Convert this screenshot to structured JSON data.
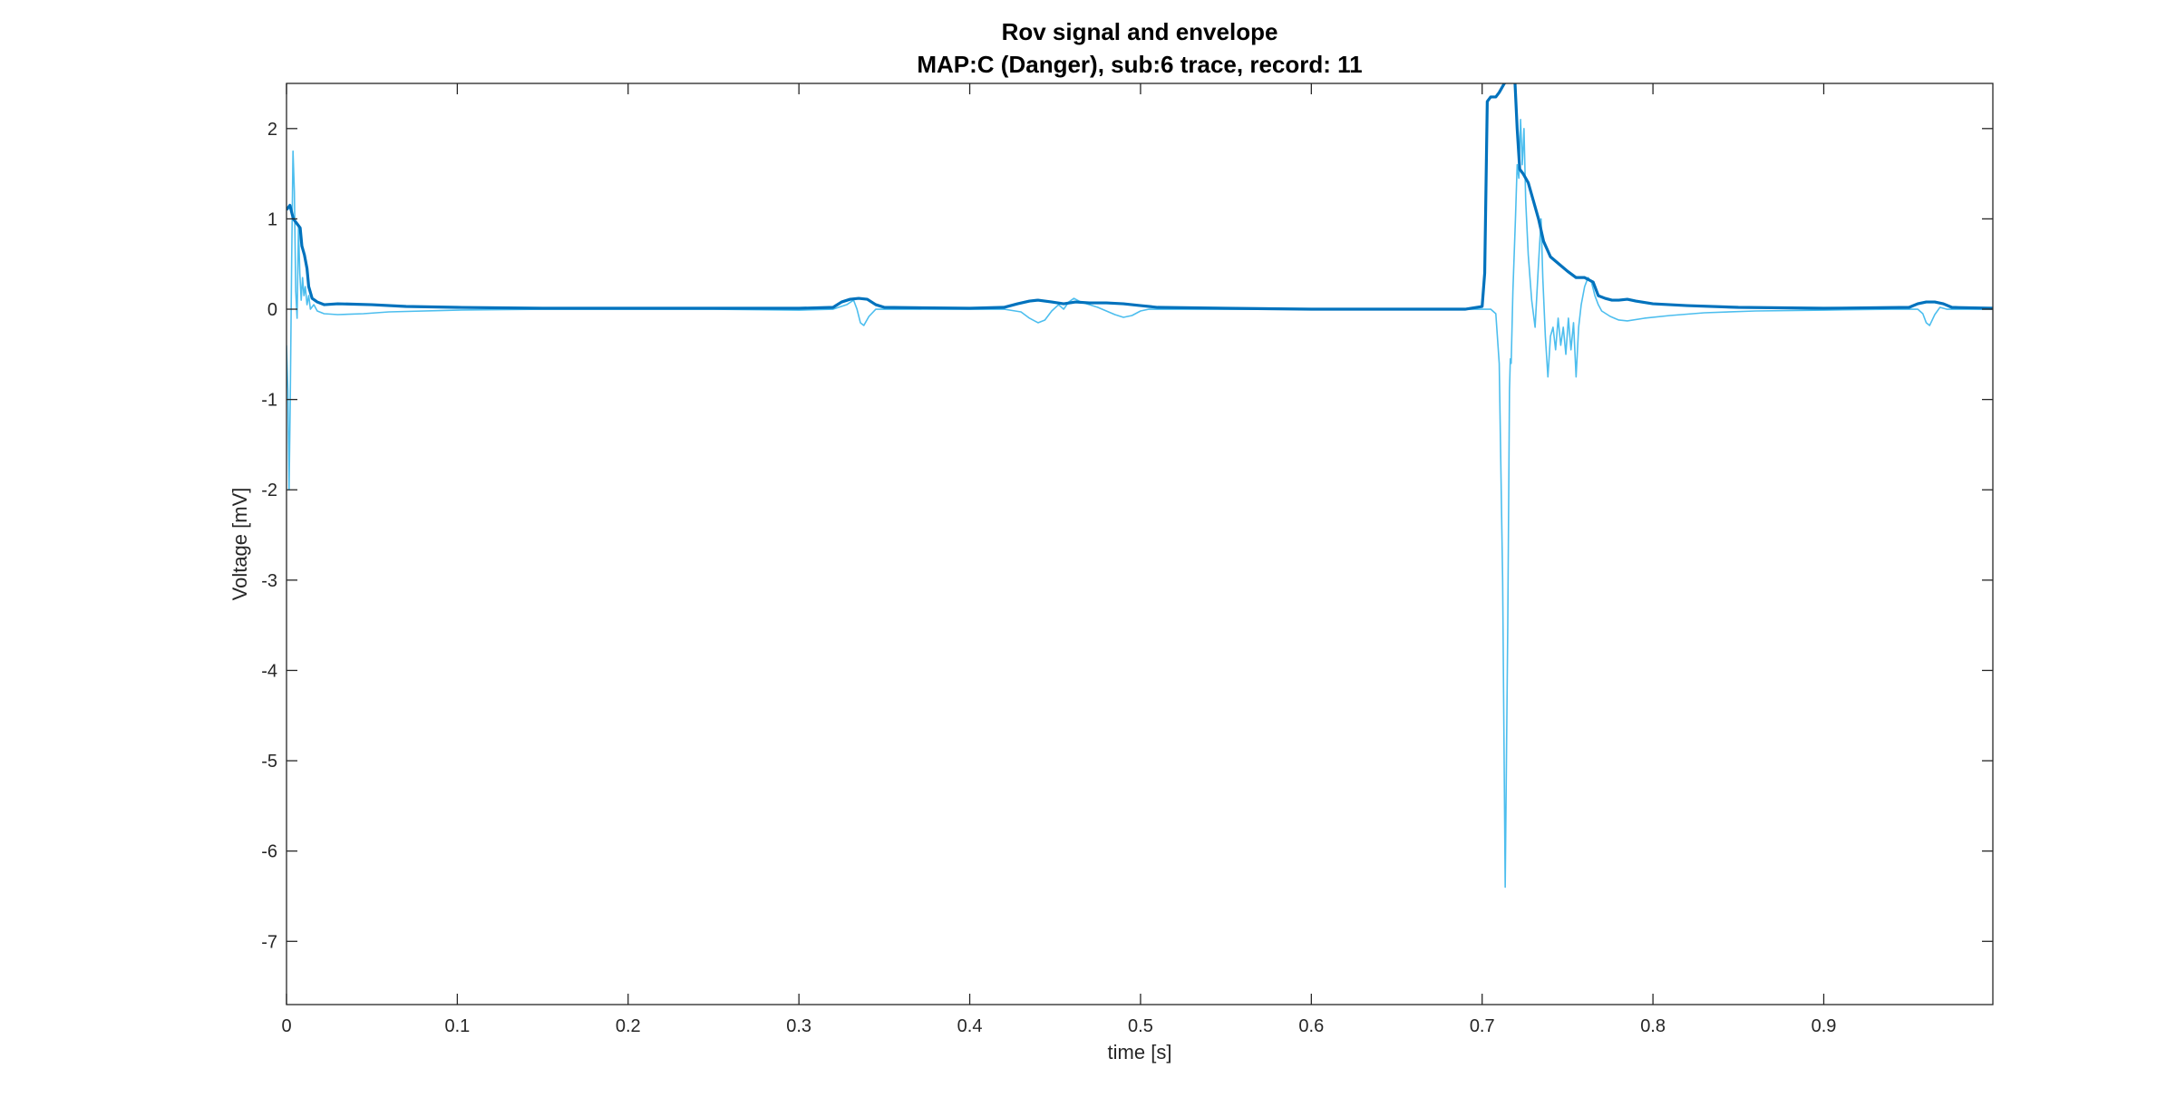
{
  "chart_data": {
    "type": "line",
    "title": "Rov signal and envelope",
    "subtitle": "MAP:C (Danger), sub:6 trace, record: 11",
    "xlabel": "time [s]",
    "ylabel": "Voltage [mV]",
    "xlim": [
      0,
      0.999
    ],
    "ylim": [
      -7.7,
      2.5
    ],
    "xticks": [
      0,
      0.1,
      0.2,
      0.3,
      0.4,
      0.5,
      0.6,
      0.7,
      0.8,
      0.9
    ],
    "xtick_labels": [
      "0",
      "0.1",
      "0.2",
      "0.3",
      "0.4",
      "0.5",
      "0.6",
      "0.7",
      "0.8",
      "0.9"
    ],
    "yticks": [
      2,
      1,
      0,
      -1,
      -2,
      -3,
      -4,
      -5,
      -6,
      -7
    ],
    "ytick_labels": [
      "2",
      "1",
      "0",
      "-1",
      "-2",
      "-3",
      "-4",
      "-5",
      "-6",
      "-7"
    ],
    "grid": false,
    "colors": {
      "signal": "#4DBEEE",
      "envelope": "#0072BD",
      "axes": "#262626"
    },
    "series": [
      {
        "key": "signal",
        "points": [
          [
            0,
            -0.4
          ],
          [
            0.0008,
            -0.9
          ],
          [
            0.0015,
            -2.0
          ],
          [
            0.0022,
            -1.0
          ],
          [
            0.003,
            0.5
          ],
          [
            0.0038,
            1.75
          ],
          [
            0.0046,
            1.3
          ],
          [
            0.0054,
            0.2
          ],
          [
            0.0062,
            -0.1
          ],
          [
            0.007,
            0.9
          ],
          [
            0.0078,
            0.4
          ],
          [
            0.0086,
            0.1
          ],
          [
            0.0094,
            0.35
          ],
          [
            0.0102,
            0.15
          ],
          [
            0.011,
            0.25
          ],
          [
            0.012,
            0.05
          ],
          [
            0.013,
            0.15
          ],
          [
            0.014,
            0.0
          ],
          [
            0.016,
            0.05
          ],
          [
            0.018,
            -0.02
          ],
          [
            0.022,
            -0.05
          ],
          [
            0.03,
            -0.06
          ],
          [
            0.045,
            -0.05
          ],
          [
            0.06,
            -0.03
          ],
          [
            0.1,
            -0.01
          ],
          [
            0.15,
            0.0
          ],
          [
            0.2,
            0.0
          ],
          [
            0.25,
            0.0
          ],
          [
            0.3,
            -0.01
          ],
          [
            0.32,
            0.0
          ],
          [
            0.328,
            0.05
          ],
          [
            0.332,
            0.1
          ],
          [
            0.334,
            0.0
          ],
          [
            0.336,
            -0.15
          ],
          [
            0.338,
            -0.18
          ],
          [
            0.341,
            -0.08
          ],
          [
            0.345,
            0.0
          ],
          [
            0.36,
            0.0
          ],
          [
            0.4,
            0.0
          ],
          [
            0.42,
            0.0
          ],
          [
            0.43,
            -0.03
          ],
          [
            0.435,
            -0.1
          ],
          [
            0.44,
            -0.15
          ],
          [
            0.444,
            -0.12
          ],
          [
            0.448,
            -0.02
          ],
          [
            0.452,
            0.05
          ],
          [
            0.455,
            0.0
          ],
          [
            0.458,
            0.08
          ],
          [
            0.461,
            0.12
          ],
          [
            0.465,
            0.08
          ],
          [
            0.47,
            0.05
          ],
          [
            0.475,
            0.02
          ],
          [
            0.48,
            -0.02
          ],
          [
            0.485,
            -0.06
          ],
          [
            0.49,
            -0.09
          ],
          [
            0.495,
            -0.07
          ],
          [
            0.5,
            -0.02
          ],
          [
            0.505,
            0.0
          ],
          [
            0.55,
            0.0
          ],
          [
            0.6,
            0.0
          ],
          [
            0.65,
            0.0
          ],
          [
            0.69,
            0.0
          ],
          [
            0.705,
            0.0
          ],
          [
            0.708,
            -0.05
          ],
          [
            0.71,
            -0.6
          ],
          [
            0.712,
            -3.0
          ],
          [
            0.7135,
            -6.4
          ],
          [
            0.715,
            -3.5
          ],
          [
            0.716,
            -0.9
          ],
          [
            0.7165,
            -0.55
          ],
          [
            0.717,
            -0.6
          ],
          [
            0.718,
            0.2
          ],
          [
            0.7195,
            1.0
          ],
          [
            0.7205,
            1.6
          ],
          [
            0.7215,
            1.45
          ],
          [
            0.7225,
            2.1
          ],
          [
            0.7235,
            1.6
          ],
          [
            0.7245,
            2.0
          ],
          [
            0.7255,
            1.2
          ],
          [
            0.727,
            0.6
          ],
          [
            0.729,
            0.1
          ],
          [
            0.731,
            -0.2
          ],
          [
            0.733,
            0.5
          ],
          [
            0.7345,
            1.0
          ],
          [
            0.7355,
            0.35
          ],
          [
            0.737,
            -0.3
          ],
          [
            0.7385,
            -0.75
          ],
          [
            0.74,
            -0.3
          ],
          [
            0.7415,
            -0.2
          ],
          [
            0.743,
            -0.45
          ],
          [
            0.7445,
            -0.1
          ],
          [
            0.746,
            -0.4
          ],
          [
            0.7475,
            -0.2
          ],
          [
            0.749,
            -0.5
          ],
          [
            0.7505,
            -0.1
          ],
          [
            0.752,
            -0.45
          ],
          [
            0.7535,
            -0.15
          ],
          [
            0.755,
            -0.75
          ],
          [
            0.7565,
            -0.2
          ],
          [
            0.758,
            0.05
          ],
          [
            0.76,
            0.25
          ],
          [
            0.762,
            0.35
          ],
          [
            0.764,
            0.3
          ],
          [
            0.766,
            0.15
          ],
          [
            0.768,
            0.05
          ],
          [
            0.77,
            -0.02
          ],
          [
            0.775,
            -0.08
          ],
          [
            0.78,
            -0.12
          ],
          [
            0.785,
            -0.13
          ],
          [
            0.795,
            -0.1
          ],
          [
            0.81,
            -0.07
          ],
          [
            0.83,
            -0.04
          ],
          [
            0.86,
            -0.02
          ],
          [
            0.9,
            -0.01
          ],
          [
            0.94,
            0.0
          ],
          [
            0.955,
            0.0
          ],
          [
            0.958,
            -0.05
          ],
          [
            0.96,
            -0.15
          ],
          [
            0.962,
            -0.18
          ],
          [
            0.965,
            -0.06
          ],
          [
            0.968,
            0.02
          ],
          [
            0.972,
            0.0
          ],
          [
            0.999,
            0.0
          ]
        ]
      },
      {
        "key": "envelope",
        "points": [
          [
            0,
            1.1
          ],
          [
            0.002,
            1.15
          ],
          [
            0.004,
            1.0
          ],
          [
            0.006,
            0.95
          ],
          [
            0.008,
            0.9
          ],
          [
            0.009,
            0.7
          ],
          [
            0.0105,
            0.6
          ],
          [
            0.012,
            0.45
          ],
          [
            0.013,
            0.25
          ],
          [
            0.015,
            0.12
          ],
          [
            0.018,
            0.08
          ],
          [
            0.022,
            0.05
          ],
          [
            0.03,
            0.06
          ],
          [
            0.05,
            0.05
          ],
          [
            0.07,
            0.03
          ],
          [
            0.1,
            0.02
          ],
          [
            0.15,
            0.01
          ],
          [
            0.2,
            0.01
          ],
          [
            0.25,
            0.01
          ],
          [
            0.3,
            0.01
          ],
          [
            0.32,
            0.02
          ],
          [
            0.325,
            0.08
          ],
          [
            0.33,
            0.11
          ],
          [
            0.335,
            0.12
          ],
          [
            0.34,
            0.11
          ],
          [
            0.345,
            0.05
          ],
          [
            0.35,
            0.02
          ],
          [
            0.4,
            0.01
          ],
          [
            0.42,
            0.02
          ],
          [
            0.428,
            0.06
          ],
          [
            0.435,
            0.09
          ],
          [
            0.44,
            0.1
          ],
          [
            0.448,
            0.08
          ],
          [
            0.455,
            0.06
          ],
          [
            0.462,
            0.08
          ],
          [
            0.47,
            0.07
          ],
          [
            0.48,
            0.07
          ],
          [
            0.49,
            0.06
          ],
          [
            0.5,
            0.04
          ],
          [
            0.51,
            0.02
          ],
          [
            0.55,
            0.01
          ],
          [
            0.6,
            0.0
          ],
          [
            0.65,
            0.0
          ],
          [
            0.69,
            0.0
          ],
          [
            0.7,
            0.03
          ],
          [
            0.7015,
            0.4
          ],
          [
            0.703,
            2.3
          ],
          [
            0.705,
            2.35
          ],
          [
            0.708,
            2.35
          ],
          [
            0.71,
            2.4
          ],
          [
            0.713,
            2.5
          ],
          [
            0.716,
            2.55
          ],
          [
            0.719,
            2.6
          ],
          [
            0.7205,
            2.0
          ],
          [
            0.722,
            1.55
          ],
          [
            0.724,
            1.5
          ],
          [
            0.727,
            1.4
          ],
          [
            0.73,
            1.2
          ],
          [
            0.733,
            1.0
          ],
          [
            0.736,
            0.75
          ],
          [
            0.74,
            0.58
          ],
          [
            0.745,
            0.5
          ],
          [
            0.75,
            0.42
          ],
          [
            0.755,
            0.35
          ],
          [
            0.76,
            0.35
          ],
          [
            0.765,
            0.3
          ],
          [
            0.768,
            0.15
          ],
          [
            0.772,
            0.12
          ],
          [
            0.776,
            0.1
          ],
          [
            0.78,
            0.1
          ],
          [
            0.785,
            0.11
          ],
          [
            0.79,
            0.09
          ],
          [
            0.8,
            0.06
          ],
          [
            0.82,
            0.04
          ],
          [
            0.85,
            0.02
          ],
          [
            0.9,
            0.01
          ],
          [
            0.95,
            0.02
          ],
          [
            0.955,
            0.06
          ],
          [
            0.96,
            0.08
          ],
          [
            0.965,
            0.08
          ],
          [
            0.97,
            0.06
          ],
          [
            0.975,
            0.02
          ],
          [
            0.999,
            0.01
          ]
        ]
      }
    ]
  }
}
